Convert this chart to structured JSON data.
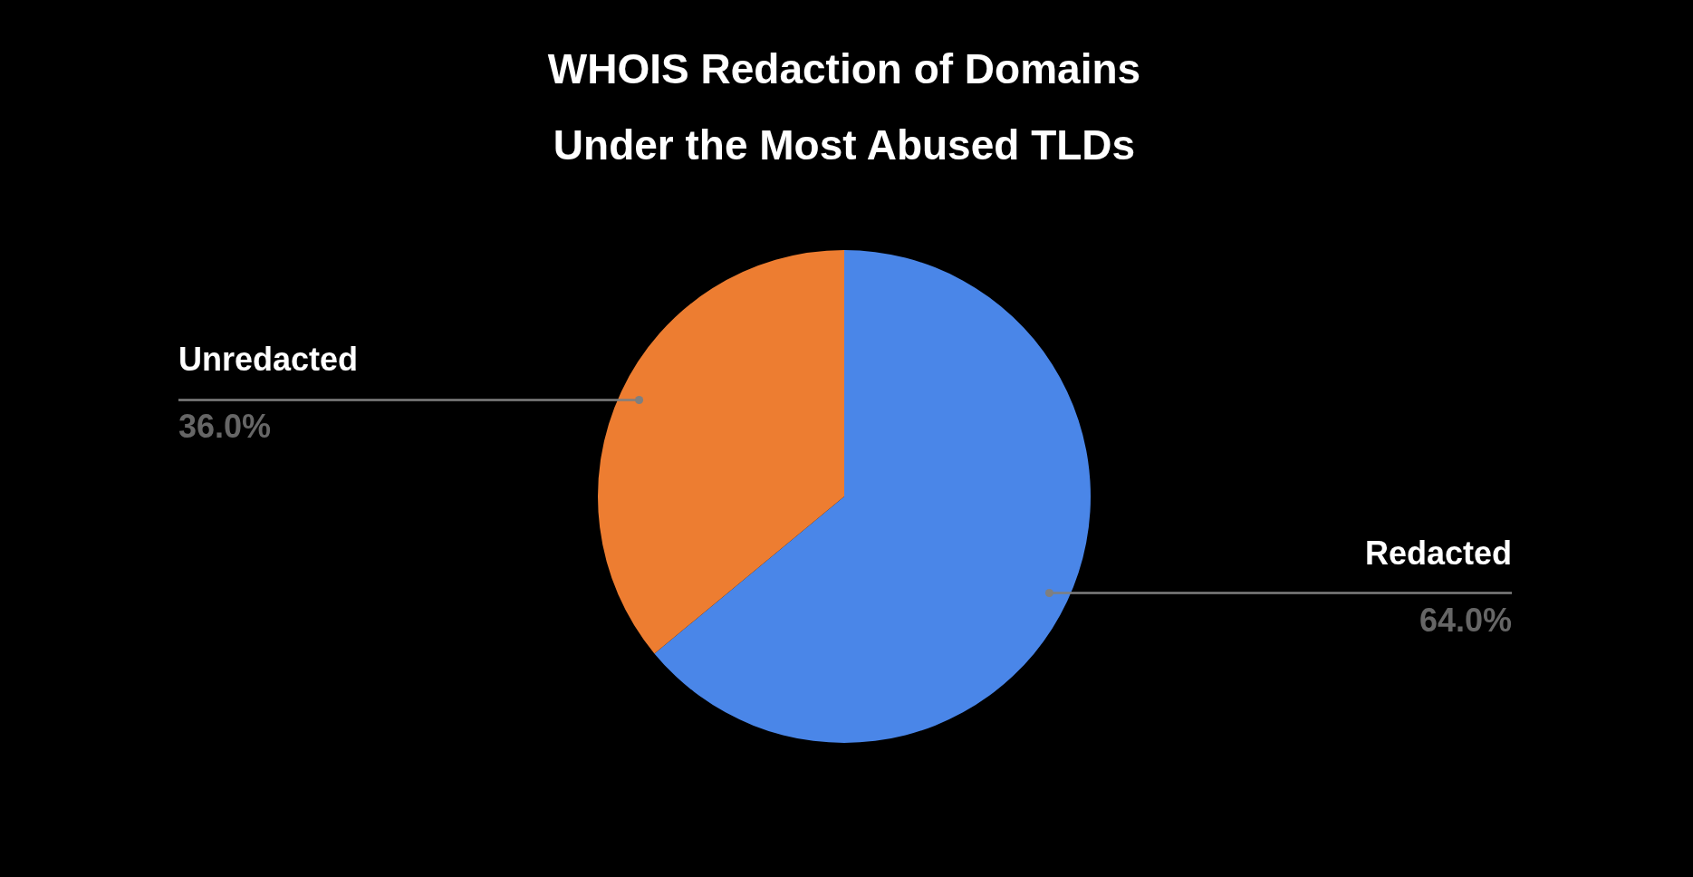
{
  "chart_data": {
    "type": "pie",
    "title": "WHOIS Redaction of Domains\nUnder the Most Abused TLDs",
    "categories": [
      "Redacted",
      "Unredacted"
    ],
    "values": [
      64.0,
      36.0
    ],
    "colors": [
      "#4a86e8",
      "#ed7d31"
    ],
    "value_labels": [
      "64.0%",
      "36.0%"
    ]
  }
}
